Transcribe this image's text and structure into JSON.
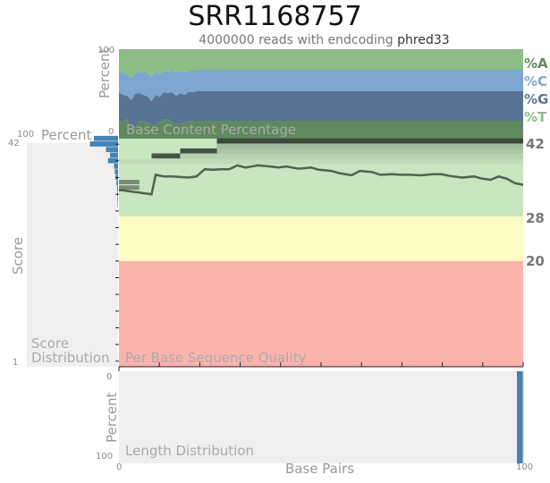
{
  "title": "SRR1168757",
  "subtitle": {
    "prefix": "4000000 reads with endcoding",
    "encoding": "phred33"
  },
  "colors": {
    "A": "#5e8a5e",
    "C": "#7da7d0",
    "G": "#587393",
    "T": "#8bbd84",
    "good": "#c8e6c0",
    "warn": "#fdfcc2",
    "fail": "#fcb3ab",
    "hist": "#4682b4",
    "panel_bg": "#efefef"
  },
  "base_content": {
    "label": "Base Content Percentage",
    "ylabel": "Percent",
    "ytick_top": "100",
    "ytick_bottom": "0",
    "legend": [
      "%A",
      "%C",
      "%G",
      "%T"
    ]
  },
  "score_distribution": {
    "xlabel": "Percent",
    "xtick": "100",
    "ylabel": "Score",
    "ytick_top": "42",
    "ytick_bottom": "1",
    "label_line1": "Score",
    "label_line2": "Distribution"
  },
  "quality": {
    "label": "Per Base Sequence Quality",
    "thresholds": [
      "42",
      "28",
      "20"
    ]
  },
  "length": {
    "label": "Length Distribution",
    "ylabel": "Percent",
    "ytick_top": "0",
    "ytick_bottom": "100"
  },
  "x_axis": {
    "label": "Base Pairs",
    "tick_left": "0",
    "tick_right": "100"
  },
  "chart_data": [
    {
      "type": "area",
      "title": "Base Content Percentage",
      "ylabel": "Percent",
      "ylim": [
        0,
        100
      ],
      "x": [
        1,
        2,
        3,
        4,
        5,
        6,
        7,
        8,
        9,
        10,
        11,
        12,
        13,
        14,
        15,
        16,
        17,
        18,
        19,
        20,
        22,
        25,
        30,
        35,
        40,
        45,
        50,
        55,
        60,
        65,
        70,
        75,
        80,
        85,
        90,
        95,
        100
      ],
      "series": [
        {
          "name": "%A",
          "values": [
            20,
            19,
            22,
            13,
            12,
            20,
            19,
            18,
            15,
            16,
            19,
            22,
            21,
            19,
            16,
            17,
            18,
            19,
            20,
            20,
            20,
            20,
            20,
            20,
            20,
            20,
            20,
            20,
            20,
            20,
            20,
            20,
            20,
            20,
            20,
            20,
            20
          ]
        },
        {
          "name": "%C",
          "values": [
            24,
            25,
            24,
            25,
            22,
            24,
            25,
            27,
            27,
            26,
            25,
            23,
            24,
            25,
            26,
            25,
            25,
            24,
            24,
            24,
            24,
            24,
            24,
            24,
            24,
            24,
            24,
            24,
            24,
            24,
            24,
            24,
            24,
            24,
            24,
            24,
            24
          ]
        },
        {
          "name": "%G",
          "values": [
            32,
            30,
            26,
            30,
            38,
            31,
            30,
            29,
            27,
            33,
            28,
            30,
            30,
            33,
            32,
            34,
            31,
            33,
            32,
            33,
            33,
            33,
            33,
            33,
            33,
            33,
            33,
            33,
            33,
            33,
            33,
            33,
            33,
            33,
            33,
            33,
            33
          ]
        },
        {
          "name": "%T",
          "values": [
            24,
            26,
            28,
            32,
            28,
            25,
            26,
            26,
            31,
            25,
            28,
            25,
            25,
            23,
            26,
            24,
            26,
            24,
            24,
            23,
            23,
            23,
            23,
            23,
            23,
            23,
            23,
            23,
            23,
            23,
            23,
            23,
            23,
            23,
            23,
            23,
            23
          ]
        }
      ]
    },
    {
      "type": "line",
      "title": "Per Base Sequence Quality",
      "ylim": [
        1,
        42
      ],
      "x": [
        1,
        2,
        3,
        4,
        5,
        6,
        7,
        8,
        9,
        10,
        12,
        14,
        16,
        18,
        20,
        22,
        24,
        26,
        28,
        30,
        32,
        35,
        38,
        40,
        42,
        45,
        48,
        50,
        53,
        55,
        58,
        60,
        63,
        65,
        68,
        70,
        72,
        75,
        78,
        80,
        82,
        85,
        88,
        90,
        92,
        94,
        96,
        98,
        100
      ],
      "values": [
        32.7,
        32.7,
        32.6,
        32.5,
        32.4,
        32.3,
        32.2,
        32.1,
        32.0,
        35.5,
        35.2,
        35.2,
        35.1,
        35.0,
        35.2,
        36.5,
        36.4,
        36.5,
        36.5,
        37.2,
        36.8,
        37.2,
        37.0,
        36.8,
        37.0,
        36.6,
        36.8,
        36.4,
        36.2,
        35.8,
        35.4,
        36.2,
        36.0,
        35.5,
        35.6,
        35.5,
        35.5,
        35.4,
        35.6,
        35.6,
        35.3,
        35.0,
        35.2,
        34.8,
        34.6,
        35.2,
        34.8,
        34.0,
        33.7
      ],
      "thresholds": [
        42,
        28,
        20
      ]
    },
    {
      "type": "bar",
      "title": "Score Distribution",
      "xlabel": "Percent",
      "ylabel": "Score",
      "categories": [
        42,
        41,
        40,
        39,
        38,
        37,
        36,
        35,
        34,
        33,
        32,
        31,
        30
      ],
      "values": [
        12,
        14,
        6,
        4,
        5,
        2,
        1.6,
        1.3,
        0.8,
        0.5,
        0.4,
        0.3,
        0.2
      ],
      "xlim": [
        0,
        100
      ]
    },
    {
      "type": "bar",
      "title": "Length Distribution",
      "ylabel": "Percent",
      "xlabel": "Base Pairs",
      "categories": [
        100
      ],
      "values": [
        100
      ],
      "xlim": [
        0,
        100
      ],
      "ylim": [
        0,
        100
      ]
    }
  ]
}
